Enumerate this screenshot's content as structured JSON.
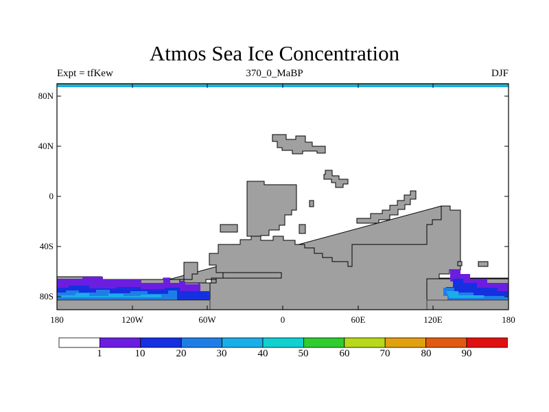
{
  "title": "Atmos Sea Ice Concentration",
  "subtitle_left": "Expt = tfKew",
  "subtitle_center": "370_0_MaBP",
  "subtitle_right": "DJF",
  "y_ticks": [
    "80N",
    "40N",
    "0",
    "40S",
    "80S"
  ],
  "x_ticks": [
    "180",
    "120W",
    "60W",
    "0",
    "60E",
    "120E",
    "180"
  ],
  "colorbar": {
    "labels": [
      "1",
      "10",
      "20",
      "30",
      "40",
      "50",
      "60",
      "70",
      "80",
      "90"
    ],
    "colors": [
      "#ffffff",
      "#6b1ee0",
      "#1530e0",
      "#1f7ee6",
      "#1aaee8",
      "#10d0d0",
      "#2ecc2e",
      "#b8d81a",
      "#e0a010",
      "#e05a10",
      "#e01010"
    ]
  },
  "colors": {
    "land": "#a0a0a0",
    "ice_low": "#6b1ee0",
    "ice_mid": "#1530e0",
    "ice_high": "#1f7ee6",
    "ice_top": "#1aaee8"
  }
}
